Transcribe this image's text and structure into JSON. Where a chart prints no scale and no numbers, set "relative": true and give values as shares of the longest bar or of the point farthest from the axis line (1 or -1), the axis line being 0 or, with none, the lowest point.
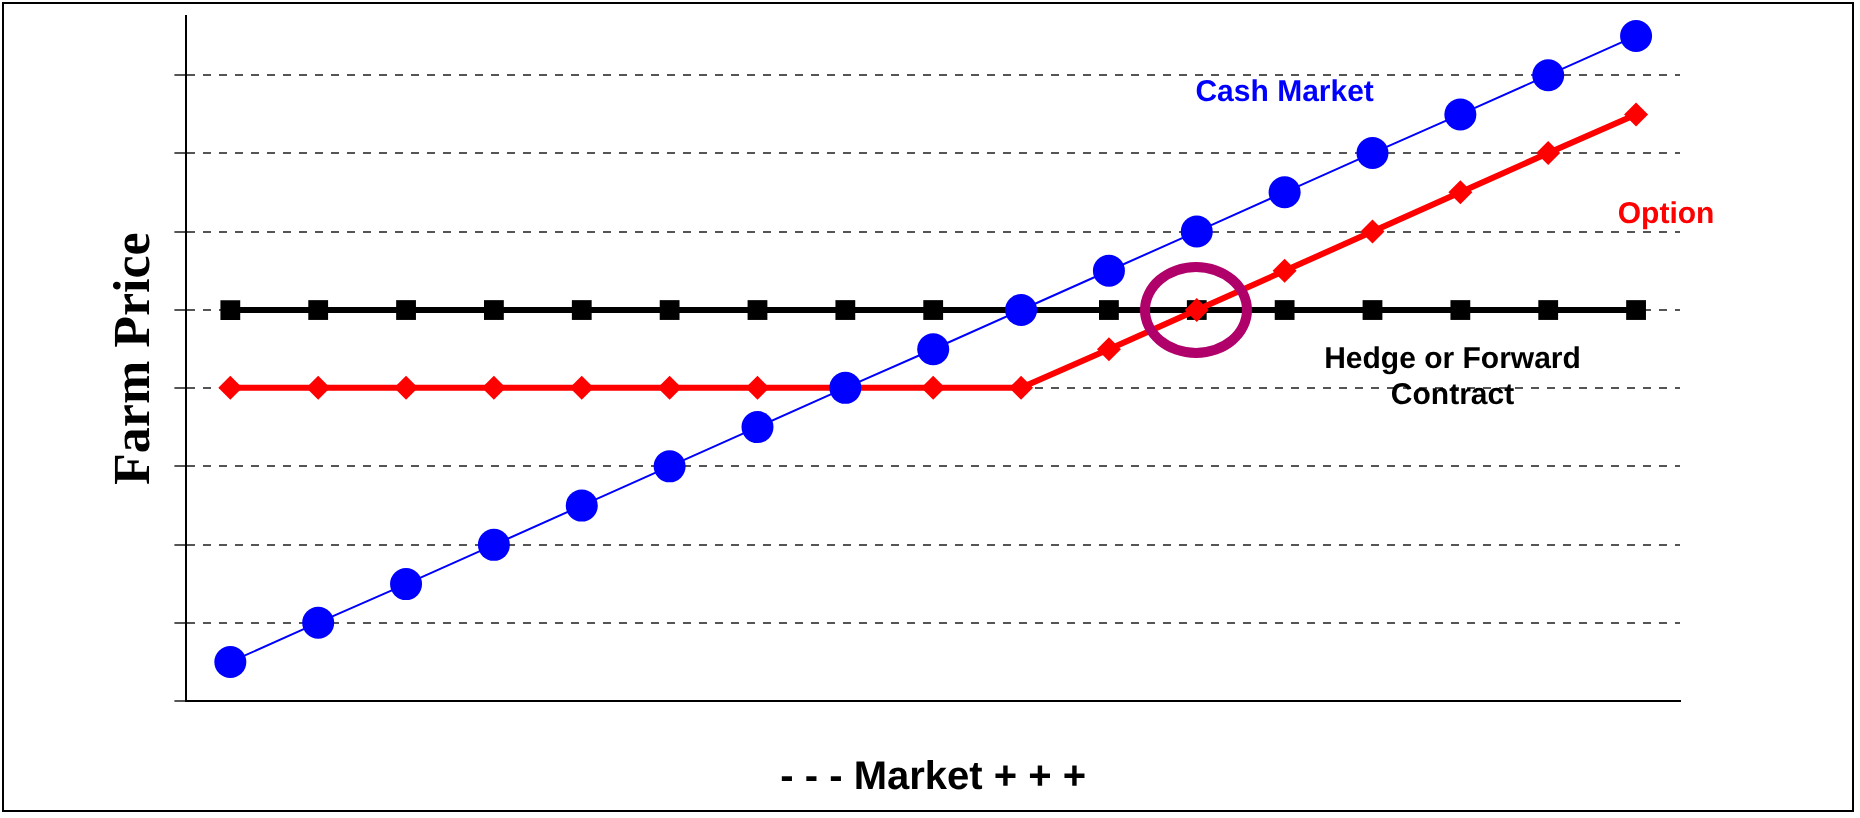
{
  "chart_data": {
    "type": "line",
    "xlabel": "- - - Market + + +",
    "ylabel": "Farm Price",
    "relative": true,
    "grid": "y",
    "legend": false,
    "categories": [
      null,
      null,
      null,
      null,
      null,
      null,
      null,
      null,
      null,
      null,
      null,
      null,
      null,
      null,
      null,
      null,
      null
    ],
    "series": [
      {
        "name": "Cash Market",
        "color": "#0000ff",
        "marker": "circle",
        "values": [
          0.059,
          0.118,
          0.176,
          0.235,
          0.294,
          0.353,
          0.412,
          0.471,
          0.529,
          0.588,
          0.647,
          0.706,
          0.765,
          0.824,
          0.882,
          0.941,
          1.0
        ]
      },
      {
        "name": "Option",
        "color": "#ff0000",
        "marker": "diamond",
        "values": [
          0.471,
          0.471,
          0.471,
          0.471,
          0.471,
          0.471,
          0.471,
          0.471,
          0.471,
          0.471,
          0.529,
          0.588,
          0.647,
          0.706,
          0.765,
          0.824,
          0.882
        ]
      },
      {
        "name": "Hedge or Forward Contract",
        "color": "#000000",
        "marker": "square",
        "values": [
          0.588,
          0.588,
          0.588,
          0.588,
          0.588,
          0.588,
          0.588,
          0.588,
          0.588,
          0.588,
          0.588,
          0.588,
          0.588,
          0.588,
          0.588,
          0.588,
          0.588
        ]
      }
    ]
  }
}
